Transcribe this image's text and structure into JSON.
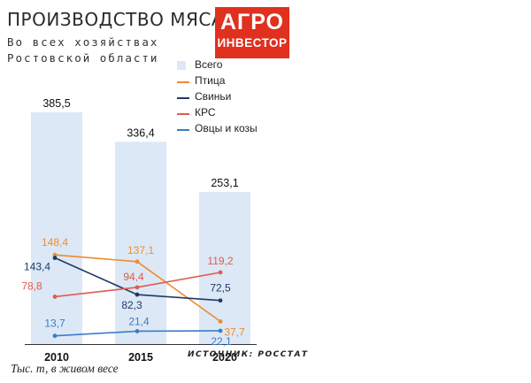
{
  "title": "ПРОИЗВОДСТВО МЯСА",
  "subtitle_line1": "Во всех хозяйствах",
  "subtitle_line2": "Ростовской области",
  "logo": {
    "line1": "АГРО",
    "line2": "ИНВЕСТОР"
  },
  "footnote": "Тыс. т, в живом весе",
  "source": "ИСТОЧНИК: РОССТАТ",
  "chart_data": {
    "type": "bar",
    "categories": [
      "2010",
      "2015",
      "2020"
    ],
    "bars": {
      "name": "Всего",
      "values": [
        385.5,
        336.4,
        253.1
      ],
      "labels": [
        "385,5",
        "336,4",
        "253,1"
      ],
      "color": "#dce8f5"
    },
    "series": [
      {
        "name": "Птица",
        "values": [
          148.4,
          137.1,
          37.7
        ],
        "labels": [
          "148,4",
          "137,1",
          "37,7"
        ],
        "color": "#f08c2c"
      },
      {
        "name": "Свиньи",
        "values": [
          143.4,
          82.3,
          72.5
        ],
        "labels": [
          "143,4",
          "82,3",
          "72,5"
        ],
        "color": "#1f3a68"
      },
      {
        "name": "КРС",
        "values": [
          78.8,
          94.4,
          119.2
        ],
        "labels": [
          "78,8",
          "94,4",
          "119,2"
        ],
        "color": "#e05a4f"
      },
      {
        "name": "Овцы и козы",
        "values": [
          13.7,
          21.4,
          22.1
        ],
        "labels": [
          "13,7",
          "21,4",
          "22,1"
        ],
        "color": "#3d7cc9"
      }
    ],
    "legend": [
      "Всего",
      "Птица",
      "Свиньи",
      "КРС",
      "Овцы и козы"
    ],
    "legend_position": "top-right",
    "grid": false
  }
}
